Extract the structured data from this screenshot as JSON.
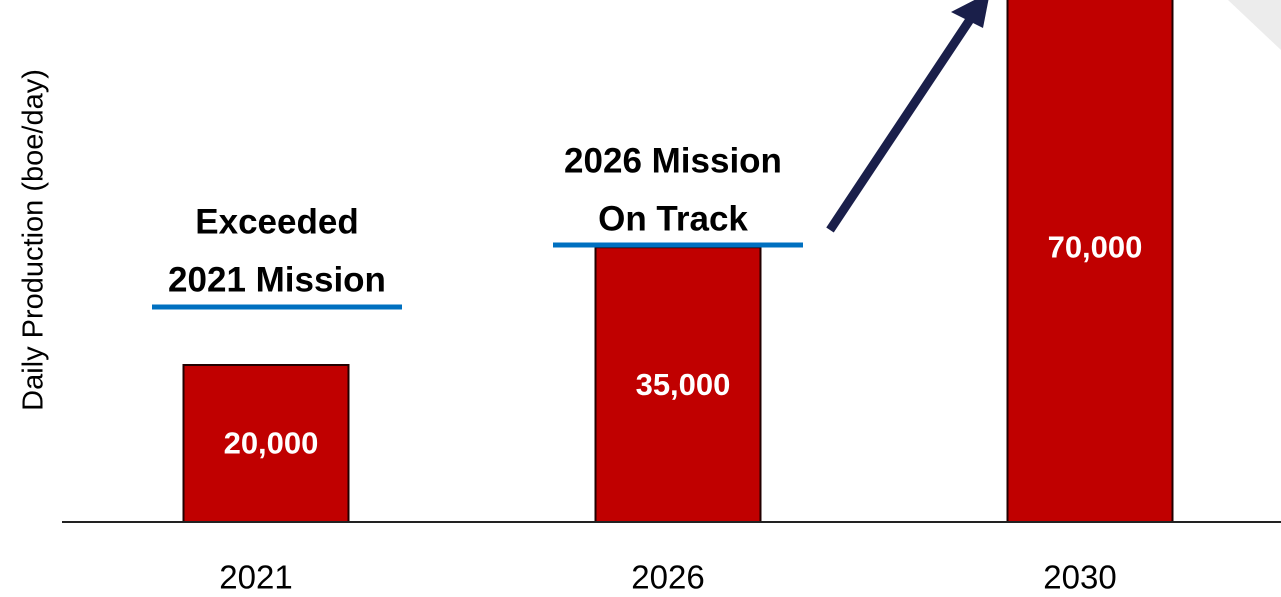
{
  "chart_data": {
    "type": "bar",
    "y_label": "Daily Production (boe/day)",
    "categories": [
      "2021",
      "2026",
      "2030"
    ],
    "values": [
      20000,
      35000,
      70000
    ],
    "value_labels": [
      "20,000",
      "35,000",
      "70,000"
    ],
    "color": "#c00000",
    "annotations": [
      {
        "lines": [
          "Exceeded",
          "2021 Mission"
        ]
      },
      {
        "lines": [
          "2026 Mission",
          "On Track"
        ]
      }
    ]
  }
}
